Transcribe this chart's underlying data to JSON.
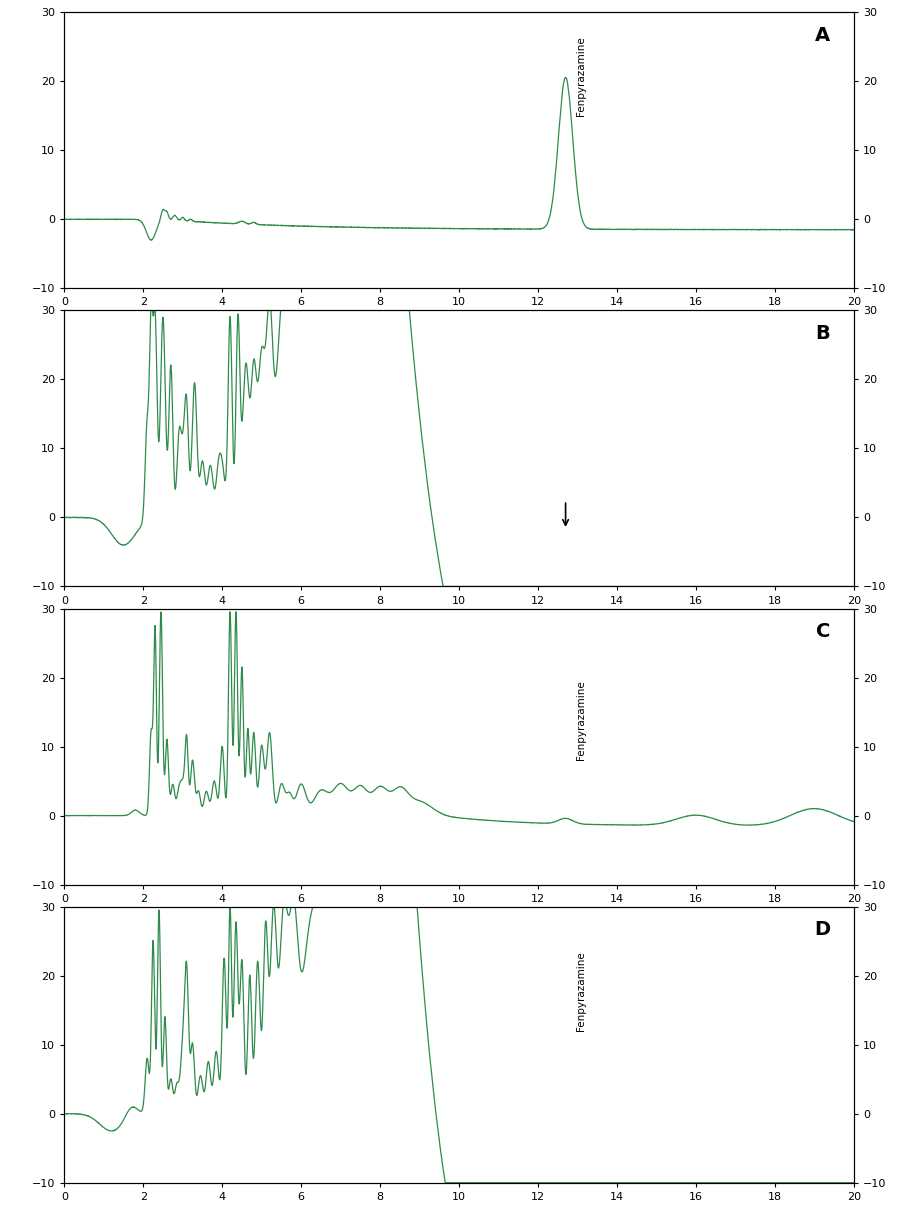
{
  "line_color": "#2e8b4a",
  "background_color": "#ffffff",
  "ylim": [
    -10,
    30
  ],
  "xlim": [
    0,
    20
  ],
  "yticks": [
    -10,
    0,
    10,
    20,
    30
  ],
  "xticks": [
    0,
    2,
    4,
    6,
    8,
    10,
    12,
    14,
    16,
    18,
    20
  ],
  "panels": [
    "A",
    "B",
    "C",
    "D"
  ],
  "fenpyrazamine_rt": 12.7
}
